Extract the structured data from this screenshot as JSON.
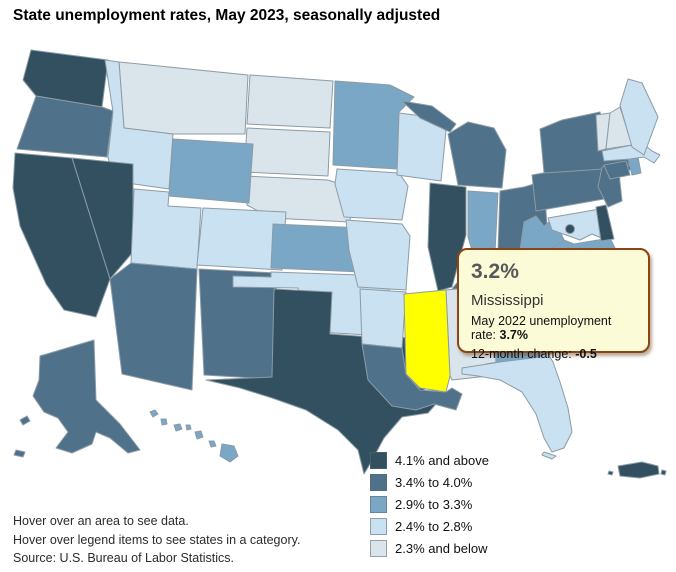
{
  "title": "State unemployment rates, May 2023, seasonally adjusted",
  "tooltip": {
    "rate": "3.2%",
    "state": "Mississippi",
    "prev_label": "May 2022 unemployment rate: ",
    "prev_value": "3.7%",
    "change_label": "12-month change: ",
    "change_value": "-0.5",
    "background": "#FBFBD7",
    "border_color": "#8B4513"
  },
  "footer": {
    "line1": "Hover over an area to see data.",
    "line2": "Hover over legend items to see states in a category.",
    "line3": "Source: U.S. Bureau of Labor Statistics."
  },
  "map": {
    "border_color": "#8C9BA6",
    "background": "#FFFFFF"
  },
  "chart_data": {
    "type": "heatmap",
    "subtype": "us-choropleth-map",
    "title": "State unemployment rates, May 2023, seasonally adjusted",
    "unit": "unemployment rate, percent, seasonally adjusted",
    "legend_position": "bottom-right",
    "bins": [
      {
        "label": "4.1% and above",
        "color": "#32505F"
      },
      {
        "label": "3.4% to 4.0%",
        "color": "#4F7189"
      },
      {
        "label": "2.9% to 3.3%",
        "color": "#7BA7C6"
      },
      {
        "label": "2.4% to 2.8%",
        "color": "#C9E1F1"
      },
      {
        "label": "2.3% and below",
        "color": "#DAE4EB"
      }
    ],
    "state_bins": {
      "WA": 0,
      "CA": 0,
      "NV": 0,
      "IL": 0,
      "TX": 0,
      "DE": 0,
      "DC": 0,
      "PR": 0,
      "OR": 1,
      "AZ": 1,
      "NM": 1,
      "AK": 1,
      "MI": 1,
      "OH": 1,
      "PA": 1,
      "NY": 1,
      "NJ": 1,
      "CT": 1,
      "KY": 1,
      "LA": 1,
      "NC": 1,
      "MN": 2,
      "WY": 2,
      "KS": 2,
      "IN": 2,
      "WV": 2,
      "VA": 2,
      "TN": 2,
      "HI": 2,
      "RI": 2,
      "GA": 2,
      "SC": 2,
      "MS": 2,
      "ID": 3,
      "CO": 3,
      "UT": 3,
      "OK": 3,
      "AR": 3,
      "MO": 3,
      "IA": 3,
      "WI": 3,
      "ME": 3,
      "MA": 3,
      "FL": 3,
      "MD": 3,
      "MT": 4,
      "ND": 4,
      "SD": 4,
      "NE": 4,
      "AL": 4,
      "VT": 4,
      "NH": 4
    },
    "highlighted": {
      "state_code": "MS",
      "state": "Mississippi",
      "color": "#FFFF00",
      "rate": "3.2%",
      "may_2022_rate": "3.7%",
      "twelve_month_change": "-0.5"
    }
  }
}
